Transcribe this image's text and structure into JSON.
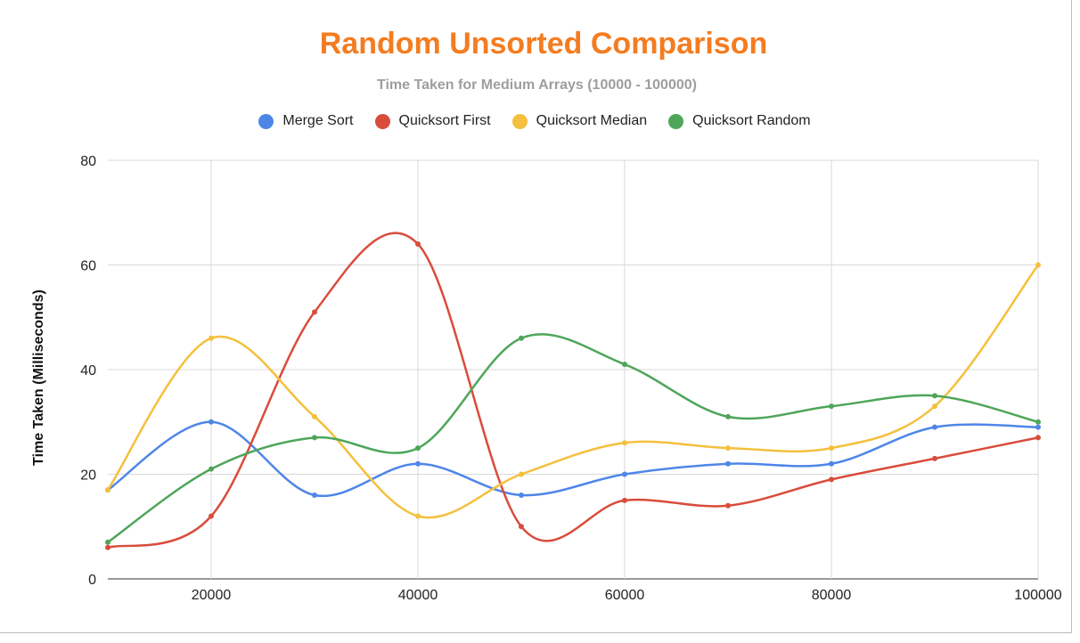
{
  "chart_data": {
    "type": "line",
    "title": "Random Unsorted Comparison",
    "subtitle": "Time Taken for Medium Arrays (10000 - 100000)",
    "ylabel": "Time Taken (Milliseconds)",
    "xlabel": "",
    "x": [
      10000,
      20000,
      30000,
      40000,
      50000,
      60000,
      70000,
      80000,
      90000,
      100000
    ],
    "xlim": [
      10000,
      100000
    ],
    "ylim": [
      0,
      80
    ],
    "x_ticks": [
      "20000",
      "40000",
      "60000",
      "80000",
      "100000"
    ],
    "y_ticks": [
      "0",
      "20",
      "40",
      "60",
      "80"
    ],
    "grid": true,
    "legend_position": "top",
    "smooth": true,
    "series": [
      {
        "name": "Merge Sort",
        "color": "#4e86e8",
        "values": [
          17,
          30,
          16,
          22,
          16,
          20,
          22,
          22,
          29,
          29
        ]
      },
      {
        "name": "Quicksort First",
        "color": "#d94c3c",
        "values": [
          6,
          12,
          51,
          64,
          10,
          15,
          14,
          19,
          23,
          27
        ]
      },
      {
        "name": "Quicksort Median",
        "color": "#f4c03d",
        "values": [
          17,
          46,
          31,
          12,
          20,
          26,
          25,
          25,
          33,
          60
        ]
      },
      {
        "name": "Quicksort Random",
        "color": "#4ea659",
        "values": [
          7,
          21,
          27,
          25,
          46,
          41,
          31,
          33,
          35,
          30
        ]
      }
    ]
  }
}
